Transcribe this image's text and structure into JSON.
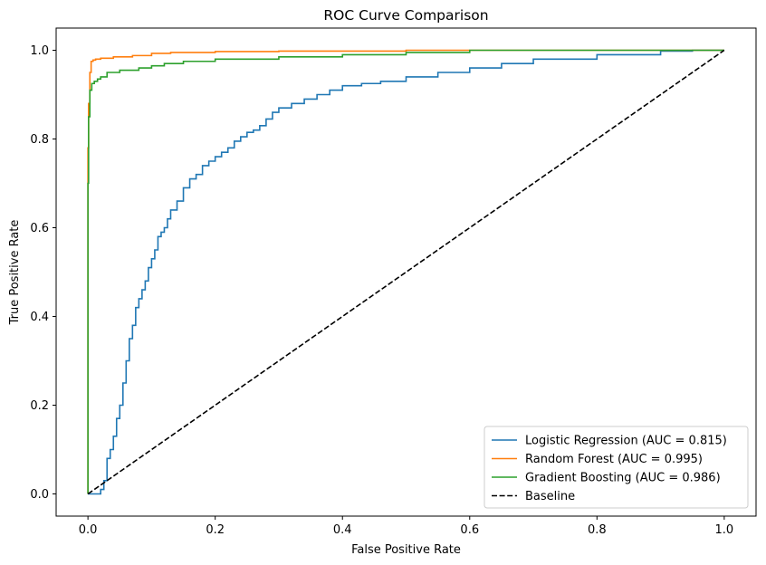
{
  "chart_data": {
    "type": "line",
    "title": "ROC Curve Comparison",
    "xlabel": "False Positive Rate",
    "ylabel": "True Positive Rate",
    "xlim": [
      -0.05,
      1.05
    ],
    "ylim": [
      -0.05,
      1.05
    ],
    "xticks": [
      "0.0",
      "0.2",
      "0.4",
      "0.6",
      "0.8",
      "1.0"
    ],
    "yticks": [
      "0.0",
      "0.2",
      "0.4",
      "0.6",
      "0.8",
      "1.0"
    ],
    "grid": false,
    "legend_position": "bottom-right",
    "series": [
      {
        "name": "Logistic Regression (AUC = 0.815)",
        "color": "#1f77b4",
        "style": "step",
        "x": [
          0,
          0.02,
          0.025,
          0.03,
          0.035,
          0.04,
          0.045,
          0.05,
          0.055,
          0.06,
          0.065,
          0.07,
          0.075,
          0.08,
          0.085,
          0.09,
          0.095,
          0.1,
          0.105,
          0.11,
          0.115,
          0.12,
          0.125,
          0.13,
          0.14,
          0.15,
          0.16,
          0.17,
          0.18,
          0.19,
          0.2,
          0.21,
          0.22,
          0.23,
          0.24,
          0.25,
          0.26,
          0.27,
          0.28,
          0.29,
          0.3,
          0.32,
          0.34,
          0.36,
          0.38,
          0.4,
          0.43,
          0.46,
          0.5,
          0.55,
          0.6,
          0.65,
          0.7,
          0.8,
          0.9,
          0.95,
          1.0
        ],
        "y": [
          0,
          0,
          0.01,
          0.03,
          0.08,
          0.1,
          0.13,
          0.17,
          0.2,
          0.25,
          0.3,
          0.35,
          0.38,
          0.42,
          0.44,
          0.46,
          0.48,
          0.51,
          0.53,
          0.55,
          0.58,
          0.59,
          0.6,
          0.62,
          0.64,
          0.66,
          0.69,
          0.71,
          0.72,
          0.74,
          0.75,
          0.76,
          0.77,
          0.78,
          0.795,
          0.805,
          0.815,
          0.82,
          0.83,
          0.845,
          0.86,
          0.87,
          0.88,
          0.89,
          0.9,
          0.91,
          0.92,
          0.925,
          0.93,
          0.94,
          0.95,
          0.96,
          0.97,
          0.98,
          0.99,
          0.998,
          1.0
        ]
      },
      {
        "name": "Random Forest (AUC = 0.995)",
        "color": "#ff7f0e",
        "style": "step",
        "x": [
          0,
          0.001,
          0.003,
          0.005,
          0.008,
          0.012,
          0.02,
          0.04,
          0.07,
          0.1,
          0.13,
          0.2,
          0.3,
          0.5,
          0.7,
          1.0
        ],
        "y": [
          0,
          0.78,
          0.88,
          0.95,
          0.975,
          0.978,
          0.98,
          0.982,
          0.985,
          0.988,
          0.993,
          0.995,
          0.997,
          0.998,
          1.0,
          1.0
        ]
      },
      {
        "name": "Gradient Boosting (AUC = 0.986)",
        "color": "#2ca02c",
        "style": "step",
        "x": [
          0,
          0.001,
          0.003,
          0.006,
          0.01,
          0.015,
          0.02,
          0.03,
          0.05,
          0.08,
          0.1,
          0.12,
          0.15,
          0.2,
          0.3,
          0.4,
          0.5,
          0.6,
          0.8,
          1.0
        ],
        "y": [
          0,
          0.7,
          0.85,
          0.91,
          0.925,
          0.93,
          0.935,
          0.94,
          0.95,
          0.955,
          0.96,
          0.965,
          0.97,
          0.975,
          0.98,
          0.985,
          0.99,
          0.995,
          1.0,
          1.0
        ]
      },
      {
        "name": "Baseline",
        "color": "#000000",
        "style": "dashed",
        "x": [
          0,
          1
        ],
        "y": [
          0,
          1
        ]
      }
    ]
  }
}
